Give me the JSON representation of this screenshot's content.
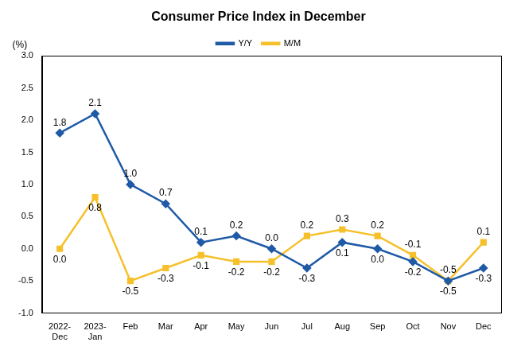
{
  "chart_data": {
    "type": "line",
    "title": "Consumer Price Index in December",
    "ylabel": "(%)",
    "categories": [
      "2022-Dec",
      "2023-Jan",
      "Feb",
      "Mar",
      "Apr",
      "May",
      "Jun",
      "Jul",
      "Aug",
      "Sep",
      "Oct",
      "Nov",
      "Dec"
    ],
    "series": [
      {
        "name": "Y/Y",
        "color": "#1f5aa6",
        "marker": "diamond",
        "values": [
          1.8,
          2.1,
          1.0,
          0.7,
          0.1,
          0.2,
          0.0,
          -0.3,
          0.1,
          0.0,
          -0.2,
          -0.5,
          -0.3
        ],
        "value_labels": [
          "1.8",
          "2.1",
          "1.0",
          "0.7",
          "0.1",
          "0.2",
          "0.0",
          "-0.3",
          "0.1",
          "0.0",
          "-0.2",
          "-0.5",
          "-0.3"
        ]
      },
      {
        "name": "M/M",
        "color": "#f5c02a",
        "marker": "square",
        "values": [
          0.0,
          0.8,
          -0.5,
          -0.3,
          -0.1,
          -0.2,
          -0.2,
          0.2,
          0.3,
          0.2,
          -0.1,
          -0.5,
          0.1
        ],
        "value_labels": [
          "0.0",
          "0.8",
          "-0.5",
          "-0.3",
          "-0.1",
          "-0.2",
          "-0.2",
          "0.2",
          "0.3",
          "0.2",
          "-0.1",
          "-0.5",
          "0.1"
        ]
      }
    ],
    "ylim": [
      -1.0,
      3.0
    ],
    "yticks": [
      {
        "value": -1.0,
        "label": "-1.0"
      },
      -0.5,
      {
        "value": 0.0,
        "label": "0.0"
      },
      0.5,
      {
        "value": 1.0,
        "label": "1.0"
      },
      1.5,
      {
        "value": 2.0,
        "label": "2.0"
      },
      2.5,
      {
        "value": 3.0,
        "label": "3.0"
      }
    ],
    "grid": false,
    "legend": "top",
    "data_labels": true
  }
}
